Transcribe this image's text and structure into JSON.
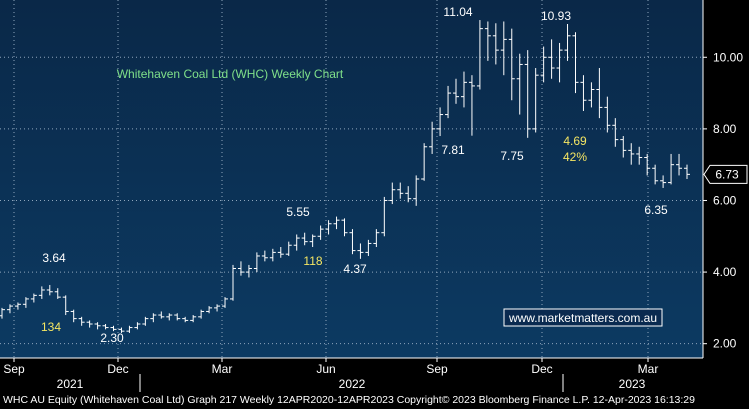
{
  "chart_data": {
    "type": "ohlc",
    "title": "Whitehaven Coal Ltd (WHC) Weekly Chart",
    "ylim": [
      1.6,
      11.6
    ],
    "y_ticks": [
      "2.00",
      "4.00",
      "6.00",
      "8.00",
      "10.00"
    ],
    "y_tick_values": [
      2,
      4,
      6,
      8,
      10
    ],
    "x_month_labels": [
      "Sep",
      "Dec",
      "Mar",
      "Jun",
      "Sep",
      "Dec",
      "Mar"
    ],
    "x_year_labels": [
      "2021",
      "2022",
      "2023"
    ],
    "last_price": "6.73",
    "watermark": "www.marketmatters.com.au",
    "grid": true,
    "series": [
      {
        "weekly_ohlc": [
          [
            2.78,
            3.0,
            2.7,
            2.95
          ],
          [
            2.95,
            3.1,
            2.85,
            3.05
          ],
          [
            3.05,
            3.15,
            2.95,
            3.1
          ],
          [
            3.1,
            3.3,
            3.0,
            3.25
          ],
          [
            3.25,
            3.4,
            3.15,
            3.35
          ],
          [
            3.35,
            3.6,
            3.25,
            3.5
          ],
          [
            3.5,
            3.64,
            3.35,
            3.45
          ],
          [
            3.45,
            3.55,
            3.25,
            3.3
          ],
          [
            3.3,
            3.35,
            2.8,
            2.9
          ],
          [
            2.9,
            2.95,
            2.6,
            2.7
          ],
          [
            2.7,
            2.75,
            2.5,
            2.6
          ],
          [
            2.6,
            2.65,
            2.45,
            2.55
          ],
          [
            2.55,
            2.6,
            2.4,
            2.5
          ],
          [
            2.5,
            2.55,
            2.4,
            2.45
          ],
          [
            2.45,
            2.5,
            2.35,
            2.4
          ],
          [
            2.4,
            2.45,
            2.3,
            2.35
          ],
          [
            2.35,
            2.5,
            2.3,
            2.45
          ],
          [
            2.45,
            2.6,
            2.4,
            2.55
          ],
          [
            2.55,
            2.75,
            2.5,
            2.7
          ],
          [
            2.7,
            2.85,
            2.6,
            2.8
          ],
          [
            2.8,
            2.9,
            2.7,
            2.75
          ],
          [
            2.75,
            2.85,
            2.65,
            2.8
          ],
          [
            2.8,
            2.85,
            2.65,
            2.7
          ],
          [
            2.7,
            2.75,
            2.6,
            2.65
          ],
          [
            2.65,
            2.8,
            2.6,
            2.75
          ],
          [
            2.75,
            2.95,
            2.7,
            2.9
          ],
          [
            2.9,
            3.05,
            2.85,
            3.0
          ],
          [
            3.0,
            3.1,
            2.9,
            3.05
          ],
          [
            3.05,
            3.3,
            3.0,
            3.25
          ],
          [
            3.25,
            4.2,
            3.2,
            4.1
          ],
          [
            4.1,
            4.3,
            3.9,
            4.0
          ],
          [
            4.0,
            4.2,
            3.85,
            4.1
          ],
          [
            4.1,
            4.55,
            4.0,
            4.45
          ],
          [
            4.45,
            4.6,
            4.3,
            4.4
          ],
          [
            4.4,
            4.65,
            4.3,
            4.55
          ],
          [
            4.55,
            4.7,
            4.4,
            4.5
          ],
          [
            4.5,
            4.85,
            4.45,
            4.75
          ],
          [
            4.75,
            5.05,
            4.6,
            4.95
          ],
          [
            4.95,
            5.1,
            4.75,
            4.85
          ],
          [
            4.85,
            5.05,
            4.7,
            5.0
          ],
          [
            5.0,
            5.3,
            4.9,
            5.2
          ],
          [
            5.2,
            5.45,
            5.05,
            5.35
          ],
          [
            5.35,
            5.55,
            5.2,
            5.45
          ],
          [
            5.45,
            5.5,
            5.0,
            5.1
          ],
          [
            5.1,
            5.2,
            4.5,
            4.6
          ],
          [
            4.6,
            4.8,
            4.37,
            4.55
          ],
          [
            4.55,
            4.9,
            4.45,
            4.8
          ],
          [
            4.8,
            5.2,
            4.7,
            5.1
          ],
          [
            5.1,
            6.1,
            5.0,
            6.0
          ],
          [
            6.0,
            6.5,
            5.9,
            6.3
          ],
          [
            6.3,
            6.5,
            6.05,
            6.2
          ],
          [
            6.2,
            6.4,
            5.95,
            6.05
          ],
          [
            6.05,
            6.7,
            5.85,
            6.6
          ],
          [
            6.6,
            7.6,
            6.55,
            7.5
          ],
          [
            7.5,
            8.2,
            7.3,
            8.0
          ],
          [
            8.0,
            8.6,
            7.8,
            8.4
          ],
          [
            8.4,
            9.2,
            8.3,
            9.0
          ],
          [
            9.0,
            9.4,
            8.7,
            8.9
          ],
          [
            8.9,
            9.6,
            8.6,
            9.3
          ],
          [
            9.3,
            9.5,
            7.81,
            9.2
          ],
          [
            9.2,
            11.04,
            9.1,
            10.8
          ],
          [
            10.8,
            11.0,
            9.9,
            10.6
          ],
          [
            10.6,
            10.95,
            9.8,
            10.2
          ],
          [
            10.2,
            11.0,
            9.5,
            10.5
          ],
          [
            10.5,
            10.8,
            8.8,
            9.4
          ],
          [
            9.4,
            10.1,
            8.4,
            9.8
          ],
          [
            9.8,
            10.2,
            7.75,
            8.0
          ],
          [
            8.0,
            9.7,
            7.9,
            9.5
          ],
          [
            9.5,
            10.3,
            9.3,
            10.0
          ],
          [
            10.0,
            10.5,
            9.4,
            9.7
          ],
          [
            9.7,
            10.4,
            9.3,
            10.2
          ],
          [
            10.2,
            10.93,
            9.9,
            10.6
          ],
          [
            10.6,
            10.7,
            9.0,
            9.3
          ],
          [
            9.3,
            9.5,
            8.5,
            8.8
          ],
          [
            8.8,
            9.3,
            8.6,
            9.1
          ],
          [
            9.1,
            9.7,
            8.3,
            8.6
          ],
          [
            8.6,
            8.9,
            7.9,
            8.1
          ],
          [
            8.1,
            8.3,
            7.5,
            7.7
          ],
          [
            7.7,
            7.8,
            7.2,
            7.4
          ],
          [
            7.4,
            7.6,
            7.0,
            7.3
          ],
          [
            7.3,
            7.5,
            7.0,
            7.2
          ],
          [
            7.2,
            7.3,
            6.7,
            6.9
          ],
          [
            6.9,
            7.0,
            6.45,
            6.55
          ],
          [
            6.55,
            6.7,
            6.35,
            6.5
          ],
          [
            6.5,
            7.3,
            6.45,
            7.0
          ],
          [
            7.0,
            7.3,
            6.7,
            6.9
          ],
          [
            6.9,
            7.0,
            6.6,
            6.73
          ]
        ]
      }
    ],
    "annotations": {
      "a_364": "3.64",
      "a_230": "2.30",
      "a_134": "134",
      "a_555": "5.55",
      "a_118": "118",
      "a_437": "4.37",
      "a_1104": "11.04",
      "a_781": "7.81",
      "a_1093": "10.93",
      "a_775": "7.75",
      "a_469": "4.69",
      "a_42": "42%",
      "a_635": "6.35"
    }
  },
  "footer_text": "WHC AU Equity (Whitehaven Coal Ltd) Graph 217  Weekly 12APR2020-12APR2023 Copyright© 2023 Bloomberg Finance L.P.  12-Apr-2023 16:13:29"
}
